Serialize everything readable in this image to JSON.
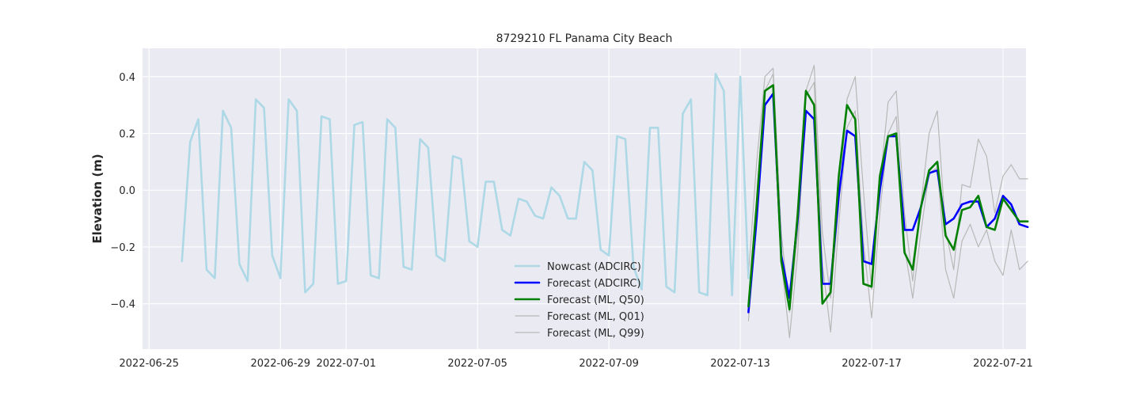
{
  "chart_data": {
    "type": "line",
    "title": "8729210 FL Panama City Beach",
    "xlabel": "",
    "ylabel": "Elevation (m)",
    "xlim_days": [
      -0.2,
      26.7
    ],
    "ylim": [
      -0.56,
      0.5
    ],
    "x_ticks": [
      {
        "day": 0,
        "label": "2022-06-25"
      },
      {
        "day": 4,
        "label": "2022-06-29"
      },
      {
        "day": 6,
        "label": "2022-07-01"
      },
      {
        "day": 10,
        "label": "2022-07-05"
      },
      {
        "day": 14,
        "label": "2022-07-09"
      },
      {
        "day": 18,
        "label": "2022-07-13"
      },
      {
        "day": 22,
        "label": "2022-07-17"
      },
      {
        "day": 26,
        "label": "2022-07-21"
      }
    ],
    "y_ticks": [
      {
        "value": 0.4,
        "label": "0.4"
      },
      {
        "value": 0.2,
        "label": "0.2"
      },
      {
        "value": 0.0,
        "label": "0.0"
      },
      {
        "value": -0.2,
        "label": "−0.2"
      },
      {
        "value": -0.4,
        "label": "−0.4"
      }
    ],
    "grid": true,
    "legend_position": "bottom-center",
    "x_units": "days since 2022-06-25",
    "series": [
      {
        "name": "Forecast (ML, Q01)",
        "color": "#b8b8b8",
        "width": 1.2,
        "x": [
          18.25,
          18.5,
          18.75,
          19.0,
          19.25,
          19.5,
          19.75,
          20.0,
          20.25,
          20.5,
          20.75,
          21.0,
          21.25,
          21.5,
          21.75,
          22.0,
          22.25,
          22.5,
          22.75,
          23.0,
          23.25,
          23.5,
          23.75,
          24.0,
          24.25,
          24.5,
          24.75,
          25.0,
          25.25,
          25.5,
          25.75,
          26.0,
          26.25,
          26.5,
          26.75
        ],
        "y": [
          -0.46,
          -0.12,
          0.35,
          0.41,
          -0.25,
          -0.52,
          -0.22,
          0.33,
          0.38,
          -0.26,
          -0.5,
          -0.12,
          0.22,
          0.28,
          -0.18,
          -0.45,
          -0.08,
          0.2,
          0.26,
          -0.2,
          -0.38,
          -0.15,
          0.06,
          0.08,
          -0.28,
          -0.38,
          -0.18,
          -0.12,
          -0.2,
          -0.14,
          -0.25,
          -0.3,
          -0.14,
          -0.28,
          -0.25
        ]
      },
      {
        "name": "Forecast (ML, Q99)",
        "color": "#b8b8b8",
        "width": 1.2,
        "x": [
          18.25,
          18.5,
          18.75,
          19.0,
          19.25,
          19.5,
          19.75,
          20.0,
          20.25,
          20.5,
          20.75,
          21.0,
          21.25,
          21.5,
          21.75,
          22.0,
          22.25,
          22.5,
          22.75,
          23.0,
          23.25,
          23.5,
          23.75,
          24.0,
          24.25,
          24.5,
          24.75,
          25.0,
          25.25,
          25.5,
          25.75,
          26.0,
          26.25,
          26.5,
          26.75
        ],
        "y": [
          -0.3,
          0.1,
          0.4,
          0.43,
          -0.15,
          -0.43,
          -0.15,
          0.35,
          0.44,
          -0.15,
          -0.38,
          -0.05,
          0.32,
          0.4,
          0.0,
          -0.35,
          0.02,
          0.31,
          0.35,
          -0.08,
          -0.32,
          -0.05,
          0.2,
          0.28,
          -0.14,
          -0.28,
          0.02,
          0.01,
          0.18,
          0.12,
          -0.08,
          0.05,
          0.09,
          0.04,
          0.04
        ]
      },
      {
        "name": "Nowcast (ADCIRC)",
        "color": "#add8e6",
        "width": 2.6,
        "x": [
          1.0,
          1.25,
          1.5,
          1.75,
          2.0,
          2.25,
          2.5,
          2.75,
          3.0,
          3.25,
          3.5,
          3.75,
          4.0,
          4.25,
          4.5,
          4.75,
          5.0,
          5.25,
          5.5,
          5.75,
          6.0,
          6.25,
          6.5,
          6.75,
          7.0,
          7.25,
          7.5,
          7.75,
          8.0,
          8.25,
          8.5,
          8.75,
          9.0,
          9.25,
          9.5,
          9.75,
          10.0,
          10.25,
          10.5,
          10.75,
          11.0,
          11.25,
          11.5,
          11.75,
          12.0,
          12.25,
          12.5,
          12.75,
          13.0,
          13.25,
          13.5,
          13.75,
          14.0,
          14.25,
          14.5,
          14.75,
          15.0,
          15.25,
          15.5,
          15.75,
          16.0,
          16.25,
          16.5,
          16.75,
          17.0,
          17.25,
          17.5,
          17.75,
          18.0,
          18.25
        ],
        "y": [
          -0.25,
          0.17,
          0.25,
          -0.28,
          -0.31,
          0.28,
          0.22,
          -0.26,
          -0.32,
          0.32,
          0.29,
          -0.23,
          -0.31,
          0.32,
          0.28,
          -0.36,
          -0.33,
          0.26,
          0.25,
          -0.33,
          -0.32,
          0.23,
          0.24,
          -0.3,
          -0.31,
          0.25,
          0.22,
          -0.27,
          -0.28,
          0.18,
          0.15,
          -0.23,
          -0.25,
          0.12,
          0.11,
          -0.18,
          -0.2,
          0.03,
          0.03,
          -0.14,
          -0.16,
          -0.03,
          -0.04,
          -0.09,
          -0.1,
          0.01,
          -0.02,
          -0.1,
          -0.1,
          0.1,
          0.07,
          -0.21,
          -0.23,
          0.19,
          0.18,
          -0.27,
          -0.35,
          0.22,
          0.22,
          -0.34,
          -0.36,
          0.27,
          0.32,
          -0.36,
          -0.37,
          0.41,
          0.35,
          -0.37,
          0.4,
          -0.31
        ]
      },
      {
        "name": "Forecast (ADCIRC)",
        "color": "#0000ff",
        "width": 2.6,
        "x": [
          18.25,
          18.5,
          18.75,
          19.0,
          19.25,
          19.5,
          19.75,
          20.0,
          20.25,
          20.5,
          20.75,
          21.0,
          21.25,
          21.5,
          21.75,
          22.0,
          22.25,
          22.5,
          22.75,
          23.0,
          23.25,
          23.5,
          23.75,
          24.0,
          24.25,
          24.5,
          24.75,
          25.0,
          25.25,
          25.5,
          25.75,
          26.0,
          26.25,
          26.5,
          26.75
        ],
        "y": [
          -0.43,
          -0.1,
          0.3,
          0.34,
          -0.23,
          -0.38,
          -0.1,
          0.28,
          0.25,
          -0.33,
          -0.33,
          -0.02,
          0.21,
          0.19,
          -0.25,
          -0.26,
          0.0,
          0.19,
          0.19,
          -0.14,
          -0.14,
          -0.06,
          0.06,
          0.07,
          -0.12,
          -0.1,
          -0.05,
          -0.04,
          -0.04,
          -0.13,
          -0.1,
          -0.02,
          -0.05,
          -0.12,
          -0.13
        ]
      },
      {
        "name": "Forecast (ML, Q50)",
        "color": "#008000",
        "width": 2.6,
        "x": [
          18.25,
          18.5,
          18.75,
          19.0,
          19.25,
          19.5,
          19.75,
          20.0,
          20.25,
          20.5,
          20.75,
          21.0,
          21.25,
          21.5,
          21.75,
          22.0,
          22.25,
          22.5,
          22.75,
          23.0,
          23.25,
          23.5,
          23.75,
          24.0,
          24.25,
          24.5,
          24.75,
          25.0,
          25.25,
          25.5,
          25.75,
          26.0,
          26.25,
          26.5,
          26.75
        ],
        "y": [
          -0.41,
          -0.05,
          0.35,
          0.37,
          -0.25,
          -0.42,
          -0.08,
          0.35,
          0.3,
          -0.4,
          -0.36,
          0.05,
          0.3,
          0.25,
          -0.33,
          -0.34,
          0.05,
          0.19,
          0.2,
          -0.22,
          -0.28,
          -0.06,
          0.07,
          0.1,
          -0.16,
          -0.21,
          -0.07,
          -0.06,
          -0.02,
          -0.13,
          -0.14,
          -0.03,
          -0.07,
          -0.11,
          -0.11
        ]
      }
    ],
    "legend": [
      {
        "label": "Nowcast (ADCIRC)",
        "color": "#add8e6",
        "width": 2.6
      },
      {
        "label": "Forecast (ADCIRC)",
        "color": "#0000ff",
        "width": 2.6
      },
      {
        "label": "Forecast (ML, Q50)",
        "color": "#008000",
        "width": 2.6
      },
      {
        "label": "Forecast (ML, Q01)",
        "color": "#b8b8b8",
        "width": 1.2
      },
      {
        "label": "Forecast (ML, Q99)",
        "color": "#b8b8b8",
        "width": 1.2
      }
    ]
  }
}
